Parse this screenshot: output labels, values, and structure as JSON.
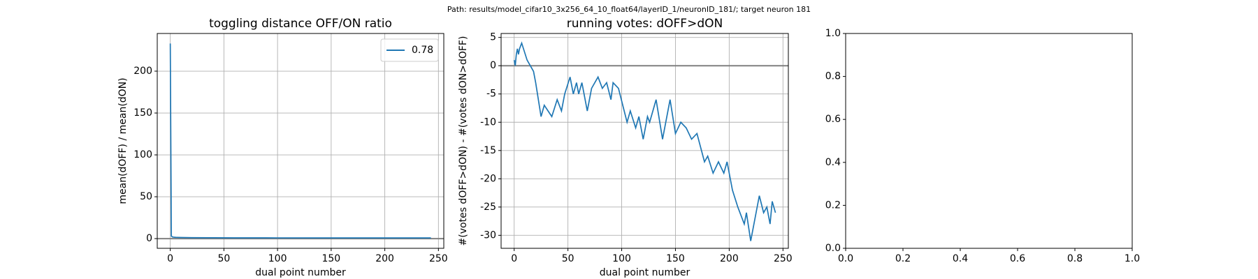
{
  "title": "Path: results/model_cifar10_3x256_64_10_float64/layerID_1/neuronID_181/; target neuron 181",
  "chart_data": [
    {
      "type": "line",
      "title": "toggling distance OFF/ON ratio",
      "xlabel": "dual point number",
      "ylabel": "mean(dOFF) / mean(dON)",
      "x": [
        0,
        1,
        2,
        3,
        4,
        5,
        10,
        20,
        40,
        60,
        80,
        100,
        150,
        200,
        243
      ],
      "series": [
        {
          "name": "0.78",
          "color": "#1f77b4",
          "values": [
            233,
            3,
            2,
            1.8,
            1.6,
            1.5,
            1.3,
            1.1,
            1,
            0.9,
            0.9,
            0.85,
            0.8,
            0.8,
            0.78
          ]
        }
      ],
      "hline": 0,
      "hline_color": "#808080",
      "xlim": [
        -12.15,
        255
      ],
      "ylim": [
        -11.6,
        245
      ],
      "xticks": [
        0,
        50,
        100,
        150,
        200,
        250
      ],
      "yticks": [
        0,
        50,
        100,
        150,
        200
      ],
      "grid": true,
      "legend": "upper-right"
    },
    {
      "type": "line",
      "title": "running votes: dOFF>dON",
      "xlabel": "dual point number",
      "ylabel": "#(votes dOFF>dON) - #(votes dON>dOFF)",
      "x": [
        0,
        1,
        2,
        3,
        4,
        5,
        7,
        12,
        15,
        18,
        20,
        25,
        28,
        35,
        40,
        44,
        47,
        52,
        55,
        58,
        60,
        63,
        68,
        72,
        78,
        82,
        86,
        90,
        92,
        97,
        105,
        108,
        113,
        116,
        120,
        124,
        126,
        132,
        138,
        145,
        150,
        155,
        160,
        165,
        170,
        177,
        180,
        185,
        190,
        195,
        198,
        203,
        208,
        214,
        216,
        220,
        228,
        232,
        235,
        238,
        240,
        243
      ],
      "series": [
        {
          "color": "#1f77b4",
          "values": [
            1,
            0,
            2,
            3,
            2,
            3,
            4,
            1,
            0,
            -1,
            -3,
            -9,
            -7,
            -9,
            -6,
            -8,
            -5,
            -2,
            -5,
            -3,
            -5,
            -3,
            -8,
            -4,
            -2,
            -4,
            -3,
            -6,
            -3,
            -4,
            -10,
            -8,
            -11,
            -9,
            -13,
            -9,
            -10,
            -6,
            -13,
            -6,
            -12,
            -10,
            -11,
            -13,
            -12,
            -17,
            -16,
            -19,
            -17,
            -19,
            -17,
            -22,
            -25,
            -28,
            -26,
            -31,
            -23,
            -26,
            -25,
            -28,
            -24,
            -26
          ]
        }
      ],
      "hline": 0,
      "hline_color": "#808080",
      "xlim": [
        -12.15,
        255
      ],
      "ylim": [
        -32.3,
        5.7
      ],
      "xticks": [
        0,
        50,
        100,
        150,
        200,
        250
      ],
      "yticks": [
        -30,
        -25,
        -20,
        -15,
        -10,
        -5,
        0,
        5
      ],
      "grid": true
    },
    {
      "type": "axes",
      "xlim": [
        0,
        1
      ],
      "ylim": [
        0,
        1
      ],
      "xticks": [
        {
          "value": 0,
          "label": "0.0"
        },
        {
          "value": 0.2,
          "label": "0.2"
        },
        {
          "value": 0.4,
          "label": "0.4"
        },
        {
          "value": 0.6,
          "label": "0.6"
        },
        {
          "value": 0.8,
          "label": "0.8"
        },
        {
          "value": 1,
          "label": "1.0"
        }
      ],
      "yticks": [
        {
          "value": 0,
          "label": "0.0"
        },
        {
          "value": 0.2,
          "label": "0.2"
        },
        {
          "value": 0.4,
          "label": "0.4"
        },
        {
          "value": 0.6,
          "label": "0.6"
        },
        {
          "value": 0.8,
          "label": "0.8"
        },
        {
          "value": 1,
          "label": "1.0"
        }
      ],
      "grid": false
    }
  ]
}
